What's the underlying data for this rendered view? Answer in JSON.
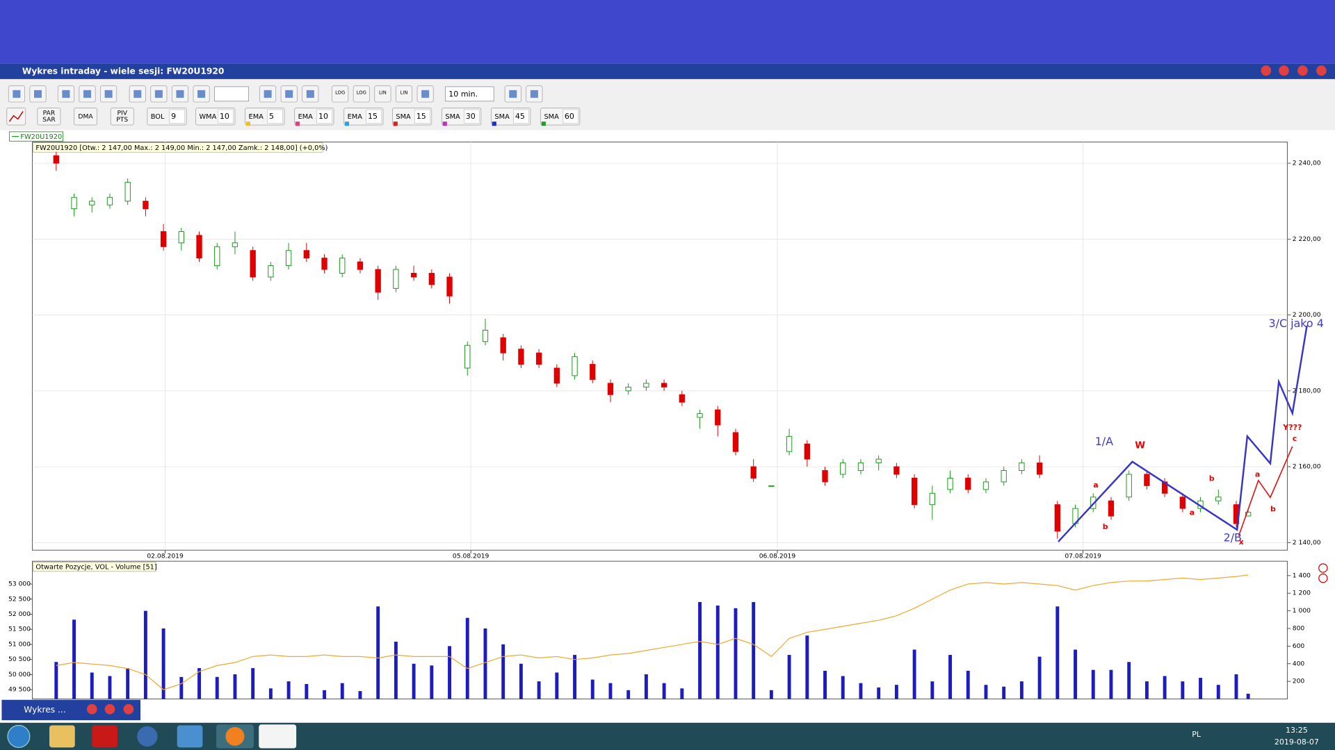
{
  "window": {
    "title": "Wykres intraday -  wiele sesji: FW20U1920",
    "minimized_title": "Wykres ..."
  },
  "toolbar": {
    "scale_buttons": [
      "LOG",
      "LOG",
      "LIN",
      "LIN"
    ],
    "interval": "10 min.",
    "buttons": [
      {
        "lines": [
          "PAR",
          "SAR"
        ]
      },
      {
        "lines": [
          "DMA"
        ]
      },
      {
        "lines": [
          "PIV",
          "PTS"
        ]
      }
    ],
    "indicators": [
      {
        "name": "BOL",
        "period": 9
      },
      {
        "name": "WMA",
        "period": 10
      },
      {
        "name": "EMA",
        "period": 5
      },
      {
        "name": "EMA",
        "period": 10
      },
      {
        "name": "EMA",
        "period": 15
      },
      {
        "name": "SMA",
        "period": 15
      },
      {
        "name": "SMA",
        "period": 30
      },
      {
        "name": "SMA",
        "period": 45
      },
      {
        "name": "SMA",
        "period": 60
      }
    ]
  },
  "chart_data": [
    {
      "type": "candlestick",
      "legend": "FW20U1920",
      "title": "FW20U1920 [Otw.: 2 147,00  Max.: 2 149,00  Min.: 2 147,00  Zamk.: 2 148,00] (+0,0%)",
      "up_color": "#1a9a1a",
      "down_color": "#e00000",
      "grid": true,
      "x": [
        4,
        7,
        10,
        13,
        16,
        19,
        22,
        25,
        28,
        31,
        34,
        37,
        40,
        43,
        46,
        49,
        52,
        55,
        58,
        61,
        64,
        67,
        70,
        73,
        76,
        79,
        82,
        85,
        88,
        91,
        94,
        97,
        100,
        103,
        106,
        109,
        112,
        115,
        118,
        121,
        124,
        127,
        130,
        133,
        136,
        139,
        142,
        145,
        148,
        151,
        154,
        157,
        160,
        163,
        166,
        169,
        172,
        175,
        178,
        181,
        184,
        187,
        190,
        193,
        196,
        199,
        202,
        204
      ],
      "open": [
        2242,
        2228,
        2229,
        2229,
        2230,
        2230,
        2222,
        2219,
        2221,
        2213,
        2218,
        2217,
        2210,
        2213,
        2217,
        2215,
        2211,
        2214,
        2212,
        2207,
        2211,
        2211,
        2210,
        2186,
        2193,
        2194,
        2191,
        2190,
        2186,
        2184,
        2187,
        2182,
        2180,
        2181,
        2182,
        2179,
        2173,
        2175,
        2169,
        2160,
        2155,
        2164,
        2166,
        2159,
        2158,
        2159,
        2161,
        2160,
        2157,
        2150,
        2154,
        2157,
        2154,
        2156,
        2159,
        2161,
        2150,
        2145,
        2149,
        2151,
        2152,
        2158,
        2156,
        2152,
        2149,
        2151,
        2150,
        2147
      ],
      "high": [
        2243,
        2232,
        2231,
        2232,
        2236,
        2231,
        2224,
        2223,
        2222,
        2219,
        2222,
        2218,
        2214,
        2219,
        2219,
        2216,
        2216,
        2215,
        2213,
        2213,
        2213,
        2212,
        2211,
        2193,
        2199,
        2195,
        2192,
        2191,
        2187,
        2190,
        2188,
        2183,
        2182,
        2183,
        2183,
        2180,
        2175,
        2176,
        2170,
        2162,
        2155,
        2170,
        2167,
        2160,
        2162,
        2162,
        2163,
        2161,
        2158,
        2155,
        2159,
        2158,
        2157,
        2160,
        2162,
        2163,
        2151,
        2150,
        2153,
        2152,
        2159,
        2159,
        2157,
        2153,
        2152,
        2154,
        2151,
        2149
      ],
      "low": [
        2238,
        2226,
        2227,
        2228,
        2229,
        2226,
        2217,
        2217,
        2214,
        2212,
        2216,
        2209,
        2209,
        2212,
        2214,
        2211,
        2210,
        2211,
        2204,
        2206,
        2209,
        2207,
        2203,
        2184,
        2192,
        2188,
        2186,
        2186,
        2181,
        2183,
        2182,
        2177,
        2179,
        2180,
        2180,
        2176,
        2170,
        2168,
        2163,
        2156,
        2155,
        2163,
        2160,
        2155,
        2157,
        2158,
        2159,
        2157,
        2149,
        2146,
        2153,
        2153,
        2153,
        2155,
        2158,
        2157,
        2141,
        2144,
        2148,
        2146,
        2151,
        2154,
        2152,
        2148,
        2148,
        2150,
        2144,
        2147
      ],
      "close": [
        2240,
        2231,
        2230,
        2231,
        2235,
        2228,
        2218,
        2222,
        2215,
        2218,
        2219,
        2210,
        2213,
        2217,
        2215,
        2212,
        2215,
        2212,
        2206,
        2212,
        2210,
        2208,
        2205,
        2192,
        2196,
        2190,
        2187,
        2187,
        2182,
        2189,
        2183,
        2179,
        2181,
        2182,
        2181,
        2177,
        2174,
        2171,
        2164,
        2157,
        2155,
        2168,
        2162,
        2156,
        2161,
        2161,
        2162,
        2158,
        2150,
        2153,
        2157,
        2154,
        2156,
        2159,
        2161,
        2158,
        2143,
        2149,
        2152,
        2147,
        2158,
        2155,
        2153,
        2149,
        2151,
        2152,
        2145,
        2148
      ],
      "xlim": [
        0,
        210.57
      ],
      "xticks": [
        {
          "value": 22.29,
          "label": "02.08.2019"
        },
        {
          "value": 73.57,
          "label": "05.08.2019"
        },
        {
          "value": 125,
          "label": "06.08.2019"
        },
        {
          "value": 176.29,
          "label": "07.08.2019"
        }
      ],
      "ylim": [
        2138,
        2245.6
      ],
      "yticks": [
        {
          "value": 2140,
          "label": "2 140,00"
        },
        {
          "value": 2160,
          "label": "2 160,00"
        },
        {
          "value": 2180,
          "label": "2 180,00"
        },
        {
          "value": 2200,
          "label": "2 200,00"
        },
        {
          "value": 2220,
          "label": "2 220,00"
        },
        {
          "value": 2240,
          "label": "2 240,00"
        }
      ],
      "annotations": [
        "1/A",
        "W",
        "a",
        "b",
        "a",
        "b",
        "a",
        "b",
        "2/B",
        "x",
        "3/C jako 4",
        "Y???",
        "c"
      ]
    },
    {
      "type": "bar",
      "title": "Otwarte Pozycje, VOL - Volume [51]",
      "x": [
        4,
        7,
        10,
        13,
        16,
        19,
        22,
        25,
        28,
        31,
        34,
        37,
        40,
        43,
        46,
        49,
        52,
        55,
        58,
        61,
        64,
        67,
        70,
        73,
        76,
        79,
        82,
        85,
        88,
        91,
        94,
        97,
        100,
        103,
        106,
        109,
        112,
        115,
        118,
        121,
        124,
        127,
        130,
        133,
        136,
        139,
        142,
        145,
        148,
        151,
        154,
        157,
        160,
        163,
        166,
        169,
        172,
        175,
        178,
        181,
        184,
        187,
        190,
        193,
        196,
        199,
        202,
        204
      ],
      "xlim": [
        0,
        210.57
      ],
      "series": [
        {
          "type": "bar",
          "axis": "y2",
          "color": "#1c1cc0",
          "values": [
            420,
            900,
            300,
            260,
            350,
            1000,
            800,
            250,
            350,
            250,
            280,
            350,
            120,
            200,
            170,
            100,
            180,
            90,
            1050,
            650,
            400,
            380,
            600,
            920,
            800,
            620,
            400,
            200,
            300,
            500,
            220,
            180,
            100,
            280,
            180,
            120,
            1100,
            1060,
            1030,
            1100,
            100,
            500,
            720,
            320,
            260,
            180,
            130,
            160,
            560,
            200,
            500,
            320,
            160,
            140,
            200,
            480,
            1050,
            560,
            330,
            330,
            420,
            200,
            260,
            200,
            240,
            160,
            280,
            60
          ]
        },
        {
          "type": "line",
          "axis": "y",
          "color": "#f0a830",
          "values": [
            50300,
            50400,
            50350,
            50300,
            50200,
            50000,
            49500,
            49700,
            50100,
            50300,
            50400,
            50600,
            50650,
            50600,
            50600,
            50650,
            50600,
            50600,
            50550,
            50650,
            50600,
            50600,
            50600,
            50200,
            50400,
            50600,
            50650,
            50550,
            50600,
            50500,
            50550,
            50650,
            50700,
            50800,
            50900,
            51000,
            51100,
            51000,
            51200,
            51000,
            50600,
            51200,
            51400,
            51500,
            51600,
            51700,
            51800,
            51950,
            52200,
            52500,
            52800,
            53000,
            53050,
            53000,
            53050,
            53000,
            52950,
            52800,
            52950,
            53050,
            53100,
            53100,
            53150,
            53200,
            53150,
            53200,
            53250,
            53300
          ]
        }
      ],
      "ylim": [
        49192,
        53756
      ],
      "yticks": [
        {
          "value": 49500,
          "label": "49 500"
        },
        {
          "value": 50000,
          "label": "50 000"
        },
        {
          "value": 50500,
          "label": "50 500"
        },
        {
          "value": 51000,
          "label": "51 000"
        },
        {
          "value": 51500,
          "label": "51 500"
        },
        {
          "value": 52000,
          "label": "52 000"
        },
        {
          "value": 52500,
          "label": "52 500"
        },
        {
          "value": 53000,
          "label": "53 000"
        }
      ],
      "y2lim": [
        0,
        1563
      ],
      "y2ticks": [
        200,
        400,
        600,
        800,
        {
          "value": 1000,
          "label": "1 000"
        },
        {
          "value": 1200,
          "label": "1 200"
        },
        {
          "value": 1400,
          "label": "1 400"
        }
      ]
    }
  ],
  "taskbar": {
    "language": "PL",
    "time": "13:25",
    "date": "2019-08-07"
  }
}
